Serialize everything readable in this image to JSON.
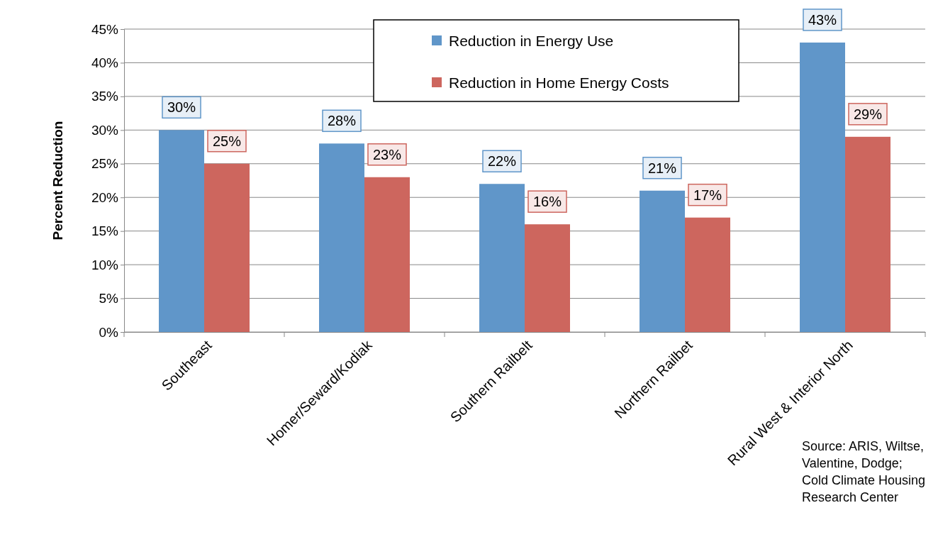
{
  "chart_data": {
    "type": "bar",
    "ylabel": "Percent Reduction",
    "categories": [
      "Southeast",
      "Homer/Seward/Kodiak",
      "Southern Railbelt",
      "Northern Railbet",
      "Rural West & Interior North"
    ],
    "series": [
      {
        "name": "Reduction in Energy Use",
        "color": "#6096c9",
        "values": [
          30,
          28,
          22,
          21,
          43
        ],
        "value_labels": [
          "30%",
          "28%",
          "22%",
          "21%",
          "43%"
        ]
      },
      {
        "name": "Reduction in Home Energy Costs",
        "color": "#cd665e",
        "values": [
          25,
          23,
          16,
          17,
          29
        ],
        "value_labels": [
          "25%",
          "23%",
          "16%",
          "17%",
          "29%"
        ]
      }
    ],
    "ylim": [
      0,
      45
    ],
    "yticks": [
      {
        "value": 0,
        "label": "0%"
      },
      {
        "value": 5,
        "label": "5%"
      },
      {
        "value": 10,
        "label": "10%"
      },
      {
        "value": 15,
        "label": "15%"
      },
      {
        "value": 20,
        "label": "20%"
      },
      {
        "value": 25,
        "label": "25%"
      },
      {
        "value": 30,
        "label": "30%"
      },
      {
        "value": 35,
        "label": "35%"
      },
      {
        "value": 40,
        "label": "40%"
      },
      {
        "value": 45,
        "label": "45%"
      }
    ],
    "grid": "y",
    "legend": "top",
    "annotations": [
      "Source: ARIS, Wiltse, Valentine, Dodge; Cold Climate Housing Research Center"
    ]
  }
}
